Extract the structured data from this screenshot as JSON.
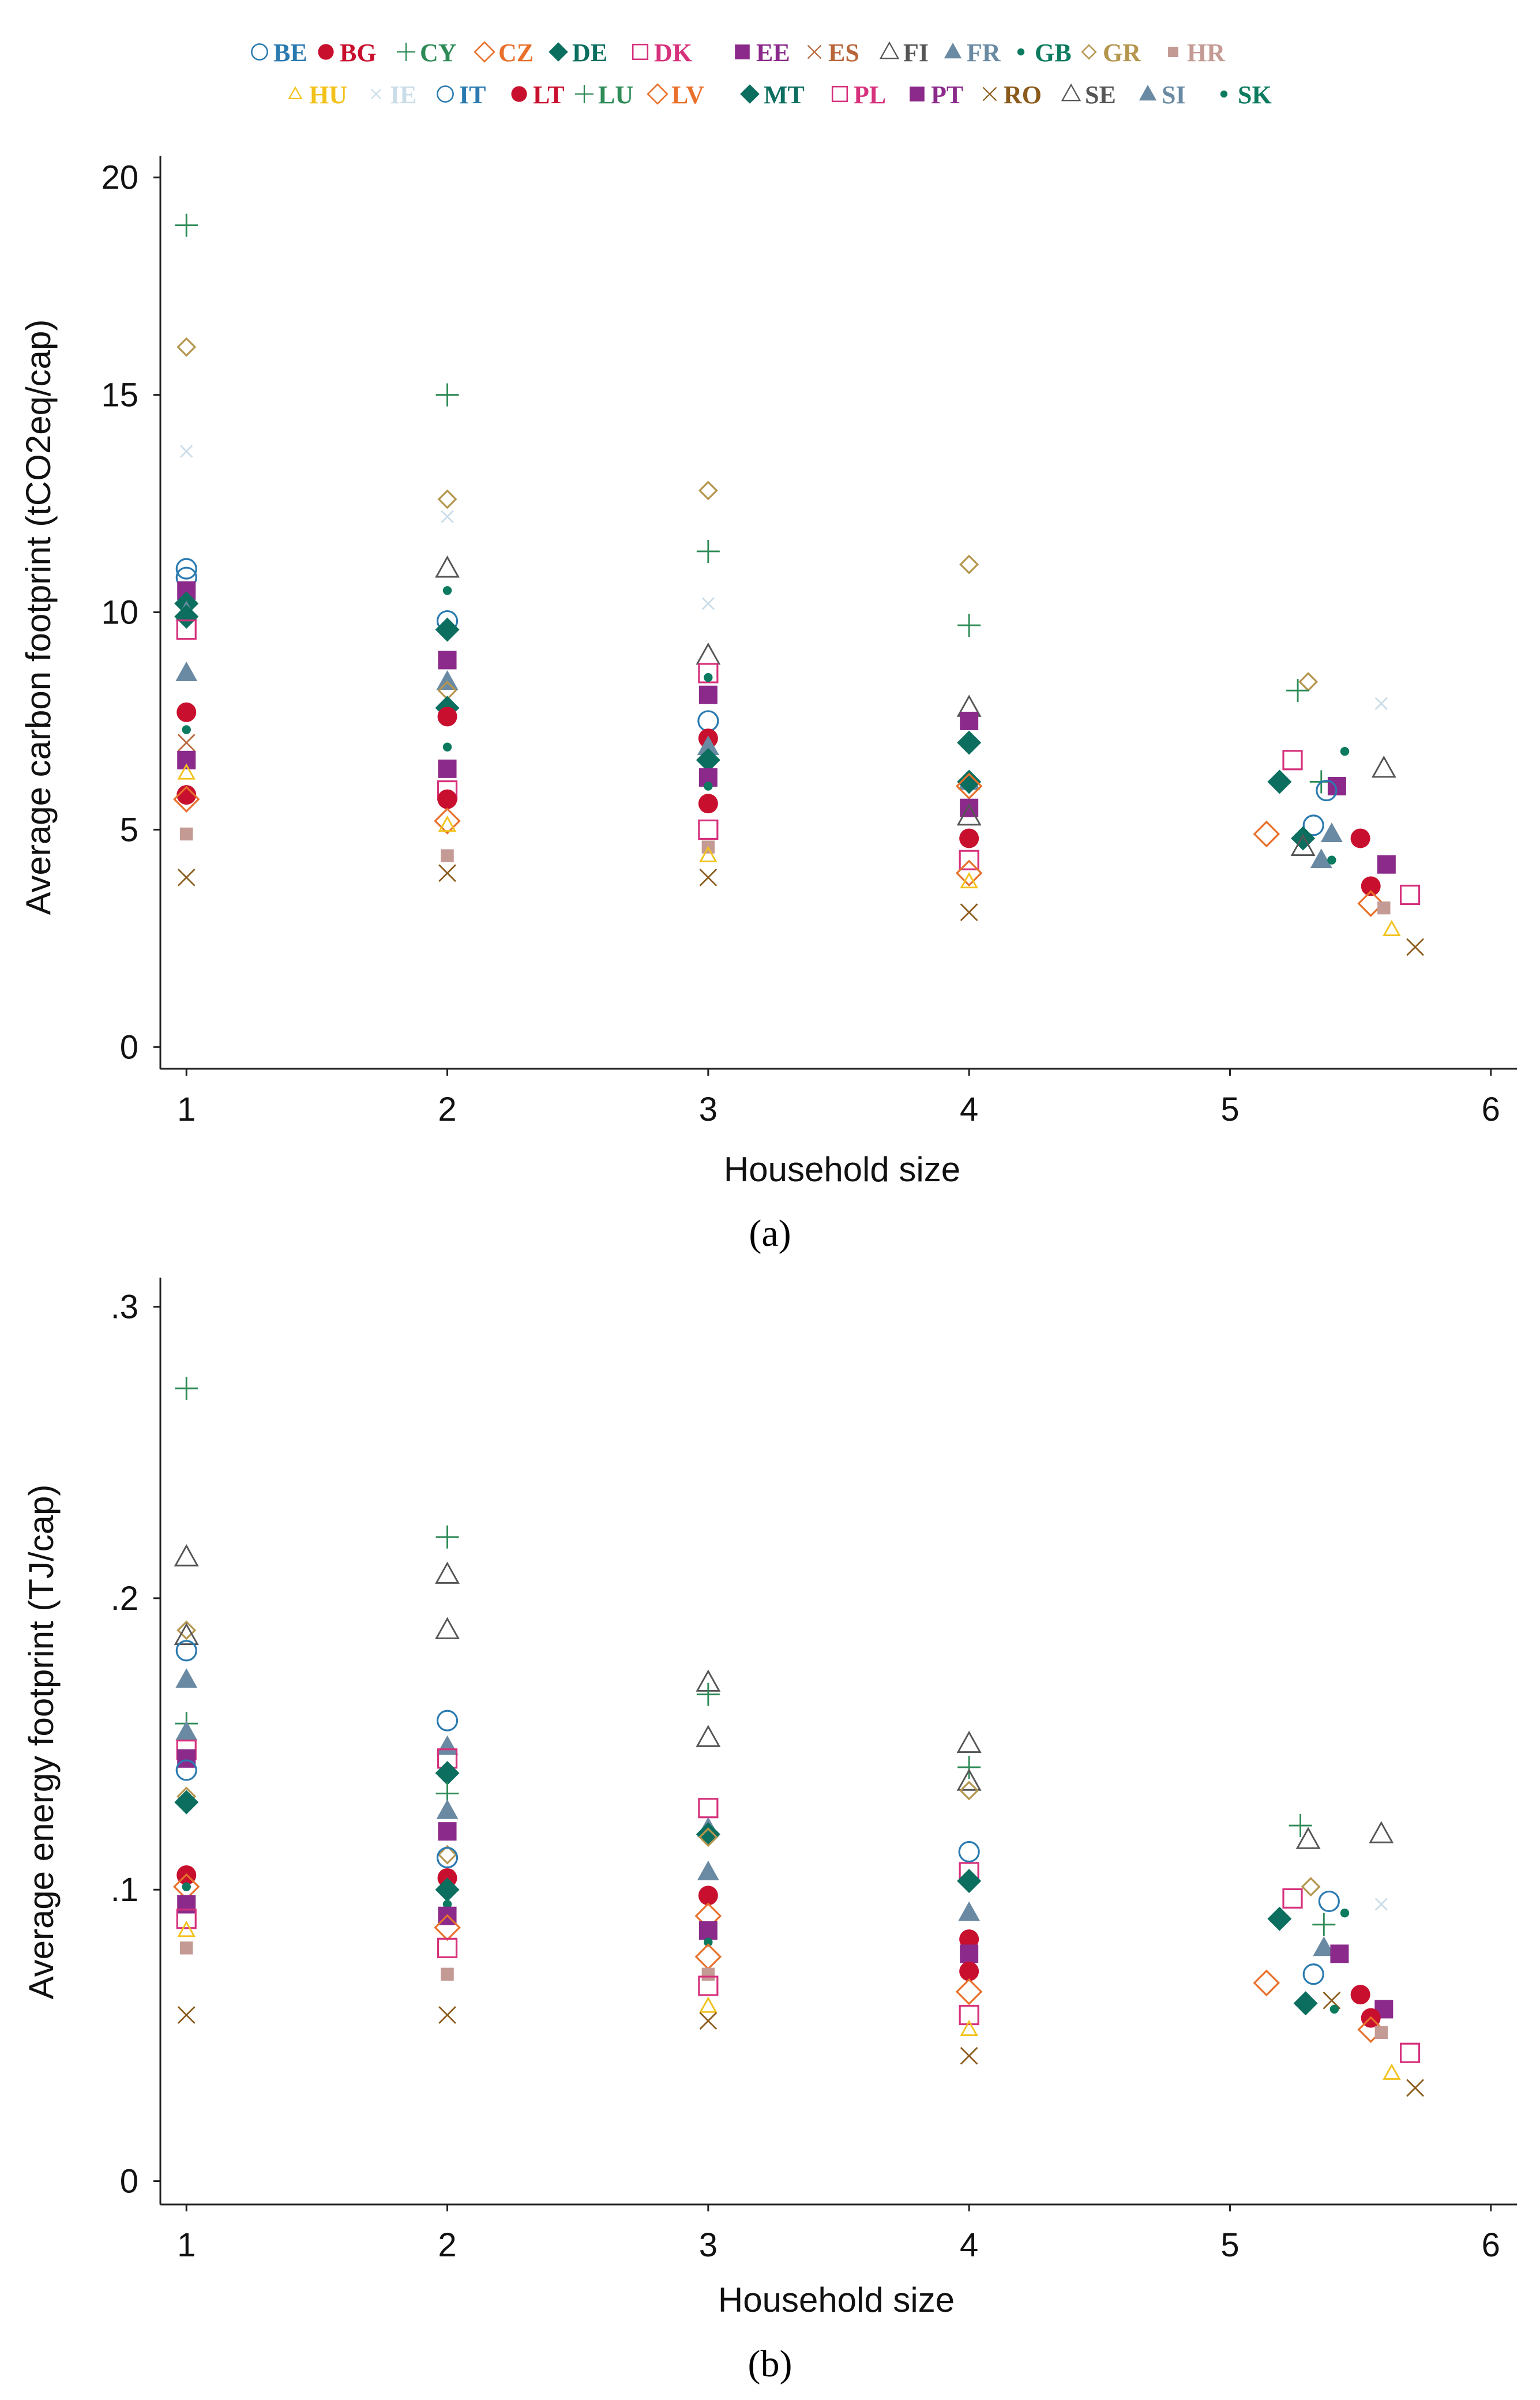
{
  "legend": {
    "row1": [
      {
        "code": "BE",
        "marker": "circle-open",
        "color": "#2a7ab0"
      },
      {
        "code": "BG",
        "marker": "circle-filled",
        "color": "#c8102e"
      },
      {
        "code": "CY",
        "marker": "plus",
        "color": "#2e8b57"
      },
      {
        "code": "CZ",
        "marker": "diamond-open",
        "color": "#e8702a"
      },
      {
        "code": "DE",
        "marker": "diamond-filled",
        "color": "#0b6e5f"
      },
      {
        "code": "DK",
        "marker": "square-open",
        "color": "#d6317c"
      },
      {
        "code": "EE",
        "marker": "square-filled",
        "color": "#8b2a8b"
      },
      {
        "code": "ES",
        "marker": "x",
        "color": "#b9663a"
      },
      {
        "code": "FI",
        "marker": "triangle-open",
        "color": "#555555"
      },
      {
        "code": "FR",
        "marker": "triangle-filled",
        "color": "#6a8aa3"
      },
      {
        "code": "GB",
        "marker": "dot-small",
        "color": "#0b7a5f"
      },
      {
        "code": "GR",
        "marker": "diamond-small-open",
        "color": "#b5964e"
      },
      {
        "code": "HR",
        "marker": "square-small-filled",
        "color": "#c49a94"
      }
    ],
    "row2": [
      {
        "code": "HU",
        "marker": "triangle-small-open",
        "color": "#f2c21b"
      },
      {
        "code": "IE",
        "marker": "x-small",
        "color": "#c9dde8"
      },
      {
        "code": "IT",
        "marker": "circle-open",
        "color": "#2a7ab0"
      },
      {
        "code": "LT",
        "marker": "circle-filled",
        "color": "#c8102e"
      },
      {
        "code": "LU",
        "marker": "plus",
        "color": "#2e8b57"
      },
      {
        "code": "LV",
        "marker": "diamond-open",
        "color": "#e8702a"
      },
      {
        "code": "MT",
        "marker": "diamond-filled",
        "color": "#0b6e5f"
      },
      {
        "code": "PL",
        "marker": "square-open",
        "color": "#d6317c"
      },
      {
        "code": "PT",
        "marker": "square-filled",
        "color": "#8b2a8b"
      },
      {
        "code": "RO",
        "marker": "x",
        "color": "#8b5a1a"
      },
      {
        "code": "SE",
        "marker": "triangle-open",
        "color": "#555555"
      },
      {
        "code": "SI",
        "marker": "triangle-filled",
        "color": "#6a8aa3"
      },
      {
        "code": "SK",
        "marker": "dot-small",
        "color": "#0b7a5f"
      }
    ]
  },
  "captions": {
    "a": "(a)",
    "b": "(b)"
  },
  "chart_data": [
    {
      "id": "a",
      "type": "scatter",
      "xlabel": "Household size",
      "ylabel": "Average carbon footprint (tCO2eq/cap)",
      "xlim": [
        0.9,
        6.1
      ],
      "ylim": [
        -0.5,
        20.5
      ],
      "xticks": [
        1,
        2,
        3,
        4,
        5,
        6
      ],
      "yticks": [
        0,
        5,
        10,
        15,
        20
      ],
      "ytick_labels": [
        "0",
        "5",
        "10",
        "15",
        "20"
      ],
      "points": [
        {
          "c": "LU",
          "x": 1,
          "y": 18.9
        },
        {
          "c": "GR",
          "x": 1,
          "y": 16.1
        },
        {
          "c": "IE",
          "x": 1,
          "y": 13.7
        },
        {
          "c": "BE",
          "x": 1,
          "y": 11.0
        },
        {
          "c": "IT",
          "x": 1,
          "y": 10.8
        },
        {
          "c": "PT",
          "x": 1,
          "y": 10.5
        },
        {
          "c": "DE",
          "x": 1,
          "y": 10.2
        },
        {
          "c": "SI",
          "x": 1,
          "y": 10.0
        },
        {
          "c": "MT",
          "x": 1,
          "y": 9.9
        },
        {
          "c": "DK",
          "x": 1,
          "y": 9.6
        },
        {
          "c": "FR",
          "x": 1,
          "y": 8.6
        },
        {
          "c": "BG",
          "x": 1,
          "y": 7.7
        },
        {
          "c": "GB",
          "x": 1,
          "y": 7.3
        },
        {
          "c": "ES",
          "x": 1,
          "y": 7.0
        },
        {
          "c": "EE",
          "x": 1,
          "y": 6.6
        },
        {
          "c": "HU",
          "x": 1,
          "y": 6.3
        },
        {
          "c": "LT",
          "x": 1,
          "y": 5.8
        },
        {
          "c": "CZ",
          "x": 1,
          "y": 5.7
        },
        {
          "c": "HR",
          "x": 1,
          "y": 4.9
        },
        {
          "c": "RO",
          "x": 1,
          "y": 3.9
        },
        {
          "c": "LU",
          "x": 2,
          "y": 15.0
        },
        {
          "c": "GR",
          "x": 2,
          "y": 12.6
        },
        {
          "c": "IE",
          "x": 2,
          "y": 12.2
        },
        {
          "c": "FI",
          "x": 2,
          "y": 11.0
        },
        {
          "c": "SK",
          "x": 2,
          "y": 10.5
        },
        {
          "c": "BE",
          "x": 2,
          "y": 9.8
        },
        {
          "c": "MT",
          "x": 2,
          "y": 9.6
        },
        {
          "c": "EE",
          "x": 2,
          "y": 8.9
        },
        {
          "c": "FR",
          "x": 2,
          "y": 8.4
        },
        {
          "c": "GR",
          "x": 2,
          "y": 8.2
        },
        {
          "c": "DE",
          "x": 2,
          "y": 7.8
        },
        {
          "c": "BG",
          "x": 2,
          "y": 7.6
        },
        {
          "c": "GB",
          "x": 2,
          "y": 6.9
        },
        {
          "c": "PT",
          "x": 2,
          "y": 6.4
        },
        {
          "c": "DK",
          "x": 2,
          "y": 5.9
        },
        {
          "c": "LT",
          "x": 2,
          "y": 5.7
        },
        {
          "c": "CZ",
          "x": 2,
          "y": 5.2
        },
        {
          "c": "HU",
          "x": 2,
          "y": 5.1
        },
        {
          "c": "HR",
          "x": 2,
          "y": 4.4
        },
        {
          "c": "RO",
          "x": 2,
          "y": 4.0
        },
        {
          "c": "GR",
          "x": 3,
          "y": 12.8
        },
        {
          "c": "CY",
          "x": 3,
          "y": 11.4
        },
        {
          "c": "IE",
          "x": 3,
          "y": 10.2
        },
        {
          "c": "FI",
          "x": 3,
          "y": 9.0
        },
        {
          "c": "DK",
          "x": 3,
          "y": 8.6
        },
        {
          "c": "SK",
          "x": 3,
          "y": 8.5
        },
        {
          "c": "PT",
          "x": 3,
          "y": 8.1
        },
        {
          "c": "BE",
          "x": 3,
          "y": 7.5
        },
        {
          "c": "BG",
          "x": 3,
          "y": 7.1
        },
        {
          "c": "FR",
          "x": 3,
          "y": 6.9
        },
        {
          "c": "MT",
          "x": 3,
          "y": 6.6
        },
        {
          "c": "EE",
          "x": 3,
          "y": 6.2
        },
        {
          "c": "GB",
          "x": 3,
          "y": 6.0
        },
        {
          "c": "LT",
          "x": 3,
          "y": 5.6
        },
        {
          "c": "PL",
          "x": 3,
          "y": 5.0
        },
        {
          "c": "HR",
          "x": 3,
          "y": 4.6
        },
        {
          "c": "HU",
          "x": 3,
          "y": 4.4
        },
        {
          "c": "RO",
          "x": 3,
          "y": 3.9
        },
        {
          "c": "GR",
          "x": 4,
          "y": 11.1
        },
        {
          "c": "CY",
          "x": 4,
          "y": 9.7
        },
        {
          "c": "FI",
          "x": 4,
          "y": 7.8
        },
        {
          "c": "PT",
          "x": 4,
          "y": 7.5
        },
        {
          "c": "DE",
          "x": 4,
          "y": 7.0
        },
        {
          "c": "SI",
          "x": 4,
          "y": 6.1
        },
        {
          "c": "MT",
          "x": 4,
          "y": 6.1
        },
        {
          "c": "CZ",
          "x": 4,
          "y": 6.0
        },
        {
          "c": "EE",
          "x": 4,
          "y": 5.5
        },
        {
          "c": "FI",
          "x": 4,
          "y": 5.3
        },
        {
          "c": "BG",
          "x": 4,
          "y": 4.8
        },
        {
          "c": "DK",
          "x": 4,
          "y": 4.3
        },
        {
          "c": "LV",
          "x": 4,
          "y": 4.0
        },
        {
          "c": "HU",
          "x": 4,
          "y": 3.8
        },
        {
          "c": "RO",
          "x": 4,
          "y": 3.1
        },
        {
          "c": "GR",
          "x": 5.3,
          "y": 8.4
        },
        {
          "c": "LU",
          "x": 5.26,
          "y": 8.2
        },
        {
          "c": "IE",
          "x": 5.58,
          "y": 7.9
        },
        {
          "c": "SK",
          "x": 5.44,
          "y": 6.8
        },
        {
          "c": "PL",
          "x": 5.24,
          "y": 6.6
        },
        {
          "c": "FI",
          "x": 5.59,
          "y": 6.4
        },
        {
          "c": "MT",
          "x": 5.19,
          "y": 6.1
        },
        {
          "c": "CY",
          "x": 5.35,
          "y": 6.1
        },
        {
          "c": "EE",
          "x": 5.41,
          "y": 6.0
        },
        {
          "c": "IT",
          "x": 5.37,
          "y": 5.9
        },
        {
          "c": "IT",
          "x": 5.32,
          "y": 5.1
        },
        {
          "c": "LV",
          "x": 5.14,
          "y": 4.9
        },
        {
          "c": "FR",
          "x": 5.39,
          "y": 4.9
        },
        {
          "c": "DE",
          "x": 5.28,
          "y": 4.8
        },
        {
          "c": "BG",
          "x": 5.5,
          "y": 4.8
        },
        {
          "c": "FI",
          "x": 5.28,
          "y": 4.6
        },
        {
          "c": "SI",
          "x": 5.35,
          "y": 4.3
        },
        {
          "c": "GB",
          "x": 5.39,
          "y": 4.3
        },
        {
          "c": "PT",
          "x": 5.6,
          "y": 4.2
        },
        {
          "c": "LT",
          "x": 5.54,
          "y": 3.7
        },
        {
          "c": "PL",
          "x": 5.69,
          "y": 3.5
        },
        {
          "c": "CZ",
          "x": 5.54,
          "y": 3.3
        },
        {
          "c": "HR",
          "x": 5.59,
          "y": 3.2
        },
        {
          "c": "HU",
          "x": 5.62,
          "y": 2.7
        },
        {
          "c": "RO",
          "x": 5.71,
          "y": 2.3
        }
      ]
    },
    {
      "id": "b",
      "type": "scatter",
      "xlabel": "Household size",
      "ylabel": "Average energy footprint (TJ/cap)",
      "xlim": [
        0.9,
        6.1
      ],
      "ylim": [
        -0.008,
        0.31
      ],
      "xticks": [
        1,
        2,
        3,
        4,
        5,
        6
      ],
      "yticks": [
        0,
        0.1,
        0.2,
        0.3
      ],
      "ytick_labels": [
        "0",
        ".1",
        ".2",
        ".3"
      ],
      "points": [
        {
          "c": "LU",
          "x": 1,
          "y": 0.272
        },
        {
          "c": "FI",
          "x": 1,
          "y": 0.214
        },
        {
          "c": "GR",
          "x": 1,
          "y": 0.189
        },
        {
          "c": "FI",
          "x": 1,
          "y": 0.187
        },
        {
          "c": "BE",
          "x": 1,
          "y": 0.182
        },
        {
          "c": "SI",
          "x": 1,
          "y": 0.172
        },
        {
          "c": "LU",
          "x": 1,
          "y": 0.157
        },
        {
          "c": "FR",
          "x": 1,
          "y": 0.154
        },
        {
          "c": "DK",
          "x": 1,
          "y": 0.148
        },
        {
          "c": "EE",
          "x": 1,
          "y": 0.145
        },
        {
          "c": "IT",
          "x": 1,
          "y": 0.141
        },
        {
          "c": "GR",
          "x": 1,
          "y": 0.132
        },
        {
          "c": "MT",
          "x": 1,
          "y": 0.13
        },
        {
          "c": "BG",
          "x": 1,
          "y": 0.105
        },
        {
          "c": "CZ",
          "x": 1,
          "y": 0.101
        },
        {
          "c": "GB",
          "x": 1,
          "y": 0.101
        },
        {
          "c": "EE",
          "x": 1,
          "y": 0.095
        },
        {
          "c": "DK",
          "x": 1,
          "y": 0.09
        },
        {
          "c": "HU",
          "x": 1,
          "y": 0.086
        },
        {
          "c": "HR",
          "x": 1,
          "y": 0.08
        },
        {
          "c": "RO",
          "x": 1,
          "y": 0.057
        },
        {
          "c": "LU",
          "x": 2,
          "y": 0.221
        },
        {
          "c": "FI",
          "x": 2,
          "y": 0.208
        },
        {
          "c": "FI",
          "x": 2,
          "y": 0.189
        },
        {
          "c": "IT",
          "x": 2,
          "y": 0.158
        },
        {
          "c": "FR",
          "x": 2,
          "y": 0.149
        },
        {
          "c": "DK",
          "x": 2,
          "y": 0.145
        },
        {
          "c": "MT",
          "x": 2,
          "y": 0.14
        },
        {
          "c": "LU",
          "x": 2,
          "y": 0.133
        },
        {
          "c": "FR",
          "x": 2,
          "y": 0.127
        },
        {
          "c": "EE",
          "x": 2,
          "y": 0.12
        },
        {
          "c": "GR",
          "x": 2,
          "y": 0.112
        },
        {
          "c": "IT",
          "x": 2,
          "y": 0.111
        },
        {
          "c": "BG",
          "x": 2,
          "y": 0.104
        },
        {
          "c": "MT",
          "x": 2,
          "y": 0.1
        },
        {
          "c": "GB",
          "x": 2,
          "y": 0.095
        },
        {
          "c": "EE",
          "x": 2,
          "y": 0.091
        },
        {
          "c": "CZ",
          "x": 2,
          "y": 0.087
        },
        {
          "c": "DK",
          "x": 2,
          "y": 0.08
        },
        {
          "c": "HR",
          "x": 2,
          "y": 0.071
        },
        {
          "c": "RO",
          "x": 2,
          "y": 0.057
        },
        {
          "c": "FI",
          "x": 3,
          "y": 0.171
        },
        {
          "c": "LU",
          "x": 3,
          "y": 0.167
        },
        {
          "c": "FI",
          "x": 3,
          "y": 0.152
        },
        {
          "c": "DK",
          "x": 3,
          "y": 0.128
        },
        {
          "c": "FR",
          "x": 3,
          "y": 0.121
        },
        {
          "c": "MT",
          "x": 3,
          "y": 0.119
        },
        {
          "c": "GR",
          "x": 3,
          "y": 0.118
        },
        {
          "c": "SI",
          "x": 3,
          "y": 0.106
        },
        {
          "c": "BG",
          "x": 3,
          "y": 0.098
        },
        {
          "c": "CZ",
          "x": 3,
          "y": 0.091
        },
        {
          "c": "EE",
          "x": 3,
          "y": 0.086
        },
        {
          "c": "GB",
          "x": 3,
          "y": 0.082
        },
        {
          "c": "LV",
          "x": 3,
          "y": 0.077
        },
        {
          "c": "HR",
          "x": 3,
          "y": 0.071
        },
        {
          "c": "PL",
          "x": 3,
          "y": 0.067
        },
        {
          "c": "HU",
          "x": 3,
          "y": 0.06
        },
        {
          "c": "RO",
          "x": 3,
          "y": 0.055
        },
        {
          "c": "FI",
          "x": 4,
          "y": 0.15
        },
        {
          "c": "LU",
          "x": 4,
          "y": 0.142
        },
        {
          "c": "FI",
          "x": 4,
          "y": 0.137
        },
        {
          "c": "GR",
          "x": 4,
          "y": 0.134
        },
        {
          "c": "IT",
          "x": 4,
          "y": 0.113
        },
        {
          "c": "DK",
          "x": 4,
          "y": 0.106
        },
        {
          "c": "MT",
          "x": 4,
          "y": 0.103
        },
        {
          "c": "FR",
          "x": 4,
          "y": 0.092
        },
        {
          "c": "BG",
          "x": 4,
          "y": 0.083
        },
        {
          "c": "EE",
          "x": 4,
          "y": 0.078
        },
        {
          "c": "LT",
          "x": 4,
          "y": 0.072
        },
        {
          "c": "LV",
          "x": 4,
          "y": 0.065
        },
        {
          "c": "PL",
          "x": 4,
          "y": 0.057
        },
        {
          "c": "HU",
          "x": 4,
          "y": 0.052
        },
        {
          "c": "RO",
          "x": 4,
          "y": 0.043
        },
        {
          "c": "LU",
          "x": 5.27,
          "y": 0.122
        },
        {
          "c": "FI",
          "x": 5.3,
          "y": 0.117
        },
        {
          "c": "FI",
          "x": 5.58,
          "y": 0.119
        },
        {
          "c": "GR",
          "x": 5.31,
          "y": 0.101
        },
        {
          "c": "PL",
          "x": 5.24,
          "y": 0.097
        },
        {
          "c": "IT",
          "x": 5.38,
          "y": 0.096
        },
        {
          "c": "IE",
          "x": 5.58,
          "y": 0.095
        },
        {
          "c": "SK",
          "x": 5.44,
          "y": 0.092
        },
        {
          "c": "MT",
          "x": 5.19,
          "y": 0.09
        },
        {
          "c": "LU",
          "x": 5.36,
          "y": 0.088
        },
        {
          "c": "FR",
          "x": 5.36,
          "y": 0.08
        },
        {
          "c": "PT",
          "x": 5.42,
          "y": 0.078
        },
        {
          "c": "IT",
          "x": 5.32,
          "y": 0.071
        },
        {
          "c": "CZ",
          "x": 5.14,
          "y": 0.068
        },
        {
          "c": "BG",
          "x": 5.5,
          "y": 0.064
        },
        {
          "c": "RO",
          "x": 5.39,
          "y": 0.062
        },
        {
          "c": "MT",
          "x": 5.29,
          "y": 0.061
        },
        {
          "c": "GB",
          "x": 5.4,
          "y": 0.059
        },
        {
          "c": "PT",
          "x": 5.59,
          "y": 0.059
        },
        {
          "c": "LT",
          "x": 5.54,
          "y": 0.056
        },
        {
          "c": "CZ",
          "x": 5.54,
          "y": 0.052
        },
        {
          "c": "HR",
          "x": 5.58,
          "y": 0.051
        },
        {
          "c": "PL",
          "x": 5.69,
          "y": 0.044
        },
        {
          "c": "HU",
          "x": 5.62,
          "y": 0.037
        },
        {
          "c": "RO",
          "x": 5.71,
          "y": 0.032
        }
      ]
    }
  ]
}
